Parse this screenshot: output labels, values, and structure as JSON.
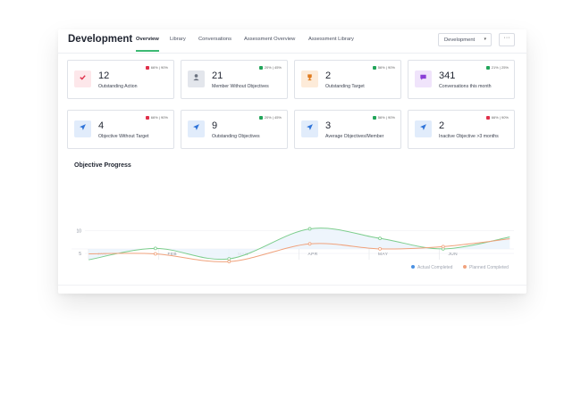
{
  "header": {
    "title": "Development",
    "tabs": [
      {
        "label": "Overview",
        "active": true
      },
      {
        "label": "Library"
      },
      {
        "label": "Conversations"
      },
      {
        "label": "Assessment Overview"
      },
      {
        "label": "Assessment Library"
      }
    ],
    "dropdown_value": "Development",
    "more_label": "···"
  },
  "cards": [
    {
      "value": "12",
      "label": "Outstanding Action",
      "trend": "66% | 90%",
      "icon": "check-icon",
      "icon_bg": "#fde7ea",
      "icon_color": "#e0304a",
      "trend_color": "#e0304a"
    },
    {
      "value": "21",
      "label": "Member Without Objectives",
      "trend": "20% | 45%",
      "icon": "user-icon",
      "icon_bg": "#e3e6ec",
      "icon_color": "#6b7280",
      "trend_color": "#22a55a"
    },
    {
      "value": "2",
      "label": "Outstanding Target",
      "trend": "56% | 90%",
      "icon": "trophy-icon",
      "icon_bg": "#fdebd9",
      "icon_color": "#e07b1f",
      "trend_color": "#22a55a"
    },
    {
      "value": "341",
      "label": "Conversations this month",
      "trend": "21% | 25%",
      "icon": "chat-icon",
      "icon_bg": "#f0e4fb",
      "icon_color": "#8a3fd6",
      "trend_color": "#22a55a"
    },
    {
      "value": "4",
      "label": "Objective Without Target",
      "trend": "66% | 90%",
      "icon": "rocket-icon",
      "icon_bg": "#e1ecfb",
      "icon_color": "#2f74d9",
      "trend_color": "#e0304a"
    },
    {
      "value": "9",
      "label": "Outstanding Objectives",
      "trend": "20% | 45%",
      "icon": "rocket-icon",
      "icon_bg": "#e1ecfb",
      "icon_color": "#2f74d9",
      "trend_color": "#22a55a"
    },
    {
      "value": "3",
      "label": "Average Objectives/Member",
      "trend": "56% | 90%",
      "icon": "rocket-icon",
      "icon_bg": "#e1ecfb",
      "icon_color": "#2f74d9",
      "trend_color": "#22a55a"
    },
    {
      "value": "2",
      "label": "Inactive Objective >3 months",
      "trend": "66% | 90%",
      "icon": "rocket-icon",
      "icon_bg": "#e1ecfb",
      "icon_color": "#2f74d9",
      "trend_color": "#e0304a"
    }
  ],
  "chart_section_title": "Objective Progress",
  "chart_data": {
    "type": "line",
    "categories": [
      "JAN",
      "FEB",
      "MAR",
      "APR",
      "MAY",
      "JUN"
    ],
    "yticks": [
      5,
      10
    ],
    "ylim": [
      0,
      14
    ],
    "series": [
      {
        "name": "Actual Completed",
        "color": "#7ccd8c",
        "points": [
          [
            -0.2,
            3.6
          ],
          [
            0.75,
            6.1
          ],
          [
            1.8,
            3.8
          ],
          [
            2.95,
            10.4
          ],
          [
            3.95,
            8.3
          ],
          [
            4.85,
            6.0
          ],
          [
            5.8,
            8.6
          ]
        ]
      },
      {
        "name": "Planned Completed",
        "color": "#f0a27c",
        "points": [
          [
            -0.2,
            4.9
          ],
          [
            0.75,
            4.9
          ],
          [
            1.8,
            3.2
          ],
          [
            2.95,
            7.1
          ],
          [
            3.95,
            6.0
          ],
          [
            4.85,
            6.5
          ],
          [
            5.8,
            8.2
          ]
        ]
      }
    ],
    "legend_position": "bottom-right",
    "legend_markers": {
      "Actual Completed": "#4a90e2",
      "Planned Completed": "#f0a27c"
    }
  }
}
